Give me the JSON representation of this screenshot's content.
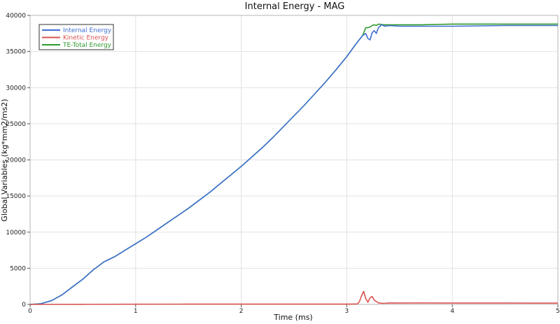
{
  "chart_data": {
    "type": "line",
    "title": "Internal Energy - MAG",
    "xlabel": "Time (ms)",
    "ylabel": "Global Variables (kg*mm2/ms2)",
    "xlim": [
      0,
      5
    ],
    "ylim": [
      0,
      40000
    ],
    "x_ticks": [
      "0",
      "1",
      "2",
      "3",
      "4",
      "5"
    ],
    "y_ticks": [
      "0",
      "5000",
      "10000",
      "15000",
      "20000",
      "25000",
      "30000",
      "35000",
      "40000"
    ],
    "grid": true,
    "legend_position": "top-left",
    "series": [
      {
        "name": "Internal Energy",
        "color": "#3f6fd1",
        "points": [
          [
            0,
            0
          ],
          [
            0.1,
            100
          ],
          [
            0.2,
            500
          ],
          [
            0.3,
            1300
          ],
          [
            0.4,
            2400
          ],
          [
            0.5,
            3500
          ],
          [
            0.6,
            4800
          ],
          [
            0.7,
            5900
          ],
          [
            0.8,
            6600
          ],
          [
            0.9,
            7500
          ],
          [
            1.0,
            8400
          ],
          [
            1.1,
            9300
          ],
          [
            1.2,
            10300
          ],
          [
            1.3,
            11300
          ],
          [
            1.4,
            12300
          ],
          [
            1.5,
            13300
          ],
          [
            1.6,
            14400
          ],
          [
            1.7,
            15500
          ],
          [
            1.8,
            16700
          ],
          [
            1.9,
            17900
          ],
          [
            2.0,
            19100
          ],
          [
            2.1,
            20400
          ],
          [
            2.2,
            21700
          ],
          [
            2.3,
            23100
          ],
          [
            2.4,
            24600
          ],
          [
            2.5,
            26100
          ],
          [
            2.6,
            27600
          ],
          [
            2.7,
            29200
          ],
          [
            2.8,
            30800
          ],
          [
            2.9,
            32500
          ],
          [
            3.0,
            34300
          ],
          [
            3.05,
            35300
          ],
          [
            3.1,
            36300
          ],
          [
            3.15,
            37200
          ],
          [
            3.18,
            37500
          ],
          [
            3.2,
            36800
          ],
          [
            3.22,
            36600
          ],
          [
            3.24,
            37600
          ],
          [
            3.26,
            37900
          ],
          [
            3.28,
            37500
          ],
          [
            3.3,
            38300
          ],
          [
            3.33,
            38700
          ],
          [
            3.36,
            38500
          ],
          [
            3.4,
            38600
          ],
          [
            3.5,
            38500
          ],
          [
            3.7,
            38500
          ],
          [
            4.0,
            38500
          ],
          [
            4.5,
            38600
          ],
          [
            5.0,
            38600
          ]
        ]
      },
      {
        "name": "Kinetic Energy",
        "color": "#d9534f",
        "points": [
          [
            0,
            0
          ],
          [
            0.5,
            10
          ],
          [
            1.0,
            30
          ],
          [
            1.5,
            40
          ],
          [
            2.0,
            40
          ],
          [
            2.5,
            40
          ],
          [
            3.0,
            40
          ],
          [
            3.1,
            60
          ],
          [
            3.12,
            400
          ],
          [
            3.14,
            1200
          ],
          [
            3.16,
            1800
          ],
          [
            3.18,
            800
          ],
          [
            3.2,
            300
          ],
          [
            3.22,
            900
          ],
          [
            3.24,
            1100
          ],
          [
            3.26,
            600
          ],
          [
            3.3,
            200
          ],
          [
            3.35,
            150
          ],
          [
            3.4,
            200
          ],
          [
            3.5,
            180
          ],
          [
            3.7,
            200
          ],
          [
            4.0,
            180
          ],
          [
            4.5,
            180
          ],
          [
            5.0,
            170
          ]
        ]
      },
      {
        "name": "TE-Total Energy",
        "color": "#2e9a2e",
        "points": [
          [
            0,
            0
          ],
          [
            0.1,
            100
          ],
          [
            0.2,
            500
          ],
          [
            0.3,
            1300
          ],
          [
            0.4,
            2400
          ],
          [
            0.5,
            3500
          ],
          [
            0.6,
            4800
          ],
          [
            0.7,
            5900
          ],
          [
            0.8,
            6600
          ],
          [
            0.9,
            7500
          ],
          [
            1.0,
            8400
          ],
          [
            1.1,
            9300
          ],
          [
            1.2,
            10300
          ],
          [
            1.3,
            11300
          ],
          [
            1.4,
            12300
          ],
          [
            1.5,
            13300
          ],
          [
            1.6,
            14400
          ],
          [
            1.7,
            15500
          ],
          [
            1.8,
            16700
          ],
          [
            1.9,
            17900
          ],
          [
            2.0,
            19100
          ],
          [
            2.1,
            20400
          ],
          [
            2.2,
            21700
          ],
          [
            2.3,
            23100
          ],
          [
            2.4,
            24600
          ],
          [
            2.5,
            26100
          ],
          [
            2.6,
            27600
          ],
          [
            2.7,
            29200
          ],
          [
            2.8,
            30800
          ],
          [
            2.9,
            32500
          ],
          [
            3.0,
            34300
          ],
          [
            3.05,
            35300
          ],
          [
            3.1,
            36300
          ],
          [
            3.15,
            37200
          ],
          [
            3.18,
            38300
          ],
          [
            3.2,
            38300
          ],
          [
            3.22,
            38400
          ],
          [
            3.24,
            38600
          ],
          [
            3.26,
            38700
          ],
          [
            3.28,
            38600
          ],
          [
            3.3,
            38800
          ],
          [
            3.35,
            38700
          ],
          [
            3.4,
            38700
          ],
          [
            3.5,
            38700
          ],
          [
            3.7,
            38700
          ],
          [
            4.0,
            38800
          ],
          [
            4.5,
            38800
          ],
          [
            5.0,
            38800
          ]
        ]
      }
    ]
  }
}
